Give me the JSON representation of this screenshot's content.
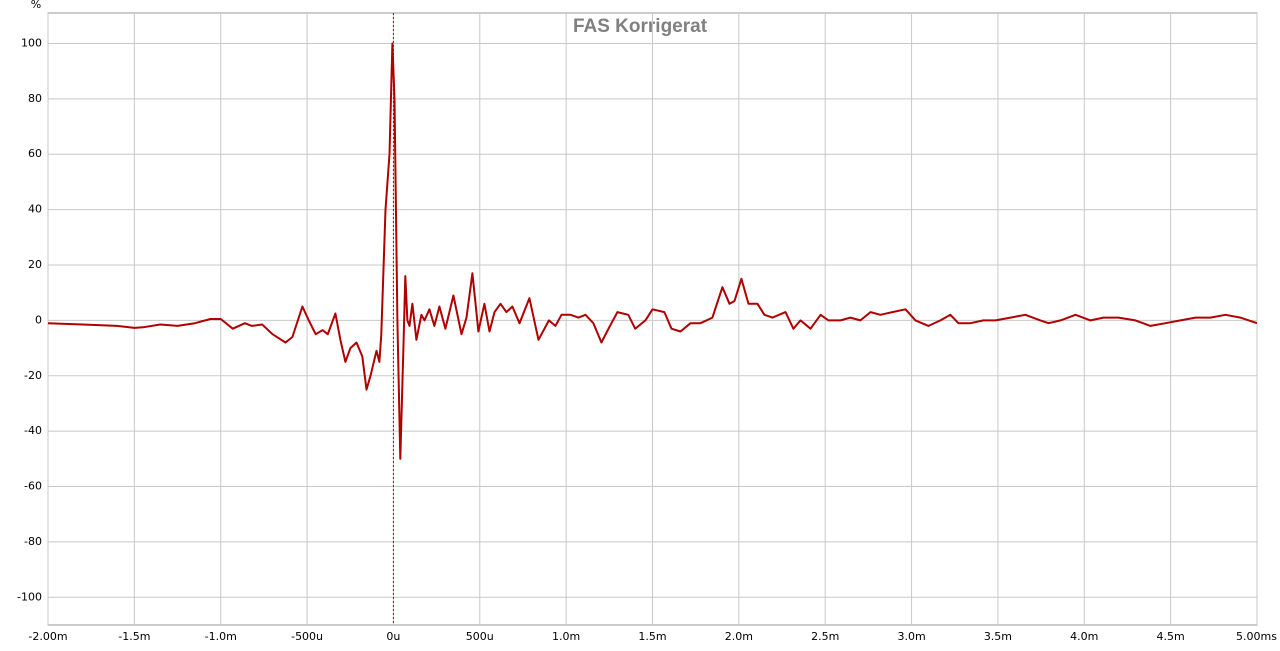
{
  "chart_data": {
    "type": "line",
    "title": "FAS Korrigerat",
    "y_unit": "%",
    "x": [
      -2.0,
      -1.8,
      -1.6,
      -1.5,
      -1.45,
      -1.35,
      -1.25,
      -1.15,
      -1.06,
      -1.0,
      -0.93,
      -0.86,
      -0.82,
      -0.76,
      -0.7,
      -0.625,
      -0.585,
      -0.527,
      -0.49,
      -0.45,
      -0.41,
      -0.38,
      -0.336,
      -0.307,
      -0.278,
      -0.249,
      -0.214,
      -0.18,
      -0.156,
      -0.133,
      -0.098,
      -0.081,
      -0.07,
      -0.046,
      -0.023,
      -0.006,
      0.006,
      0.023,
      0.04,
      0.058,
      0.069,
      0.081,
      0.093,
      0.11,
      0.133,
      0.162,
      0.18,
      0.208,
      0.237,
      0.266,
      0.301,
      0.347,
      0.394,
      0.423,
      0.457,
      0.492,
      0.527,
      0.556,
      0.585,
      0.62,
      0.654,
      0.689,
      0.73,
      0.787,
      0.84,
      0.9,
      0.938,
      0.973,
      1.025,
      1.071,
      1.112,
      1.158,
      1.204,
      1.245,
      1.297,
      1.36,
      1.4,
      1.459,
      1.5,
      1.569,
      1.61,
      1.662,
      1.72,
      1.778,
      1.847,
      1.905,
      1.946,
      1.975,
      2.015,
      2.056,
      2.108,
      2.148,
      2.195,
      2.27,
      2.316,
      2.357,
      2.415,
      2.473,
      2.519,
      2.588,
      2.646,
      2.704,
      2.762,
      2.82,
      2.889,
      2.965,
      3.023,
      3.098,
      3.167,
      3.225,
      3.271,
      3.341,
      3.416,
      3.486,
      3.573,
      3.659,
      3.746,
      3.793,
      3.862,
      3.949,
      4.036,
      4.111,
      4.198,
      4.296,
      4.383,
      4.47,
      4.557,
      4.644,
      4.731,
      4.817,
      4.904,
      5.0
    ],
    "series": [
      {
        "color": "#b00000",
        "values": [
          -1,
          -1.5,
          -2,
          -2.7,
          -2.5,
          -1.5,
          -2,
          -1,
          0.5,
          0.5,
          -3,
          -1,
          -2,
          -1.5,
          -5,
          -8,
          -6,
          5,
          0,
          -5,
          -3.5,
          -5,
          2.5,
          -7,
          -15,
          -10,
          -8,
          -13,
          -25,
          -20,
          -11,
          -15,
          -5,
          40,
          60,
          100,
          80,
          0,
          -50,
          -10,
          16,
          0,
          -2,
          6,
          -7,
          2,
          0,
          4,
          -2,
          5,
          -3,
          9,
          -5,
          1,
          17,
          -4,
          6,
          -4,
          3,
          6,
          3,
          5,
          -1,
          8,
          -7,
          0,
          -2,
          2,
          2,
          1,
          2,
          -1,
          -8,
          -3,
          3,
          2,
          -3,
          0,
          4,
          3,
          -3,
          -4,
          -1,
          -1,
          1,
          12,
          6,
          7,
          15,
          6,
          6,
          2,
          1,
          3,
          -3,
          0,
          -3,
          2,
          0,
          0,
          1,
          0,
          3,
          2,
          3,
          4,
          0,
          -2,
          0,
          2,
          -1,
          -1,
          0,
          0,
          1,
          2,
          0,
          -1,
          0,
          2,
          0,
          1,
          1,
          0,
          -2,
          -1,
          0,
          1,
          1,
          2,
          1,
          -1
        ]
      }
    ],
    "xlim": [
      -2.0,
      5.0
    ],
    "xticks": [
      {
        "value": -2.0,
        "label": "-2.00m"
      },
      {
        "value": -1.5,
        "label": "-1.5m"
      },
      {
        "value": -1.0,
        "label": "-1.0m"
      },
      {
        "value": -0.5,
        "label": "-500u"
      },
      {
        "value": 0,
        "label": "0u"
      },
      {
        "value": 0.5,
        "label": "500u"
      },
      {
        "value": 1.0,
        "label": "1.0m"
      },
      {
        "value": 1.5,
        "label": "1.5m"
      },
      {
        "value": 2.0,
        "label": "2.0m"
      },
      {
        "value": 2.5,
        "label": "2.5m"
      },
      {
        "value": 3.0,
        "label": "3.0m"
      },
      {
        "value": 3.5,
        "label": "3.5m"
      },
      {
        "value": 4.0,
        "label": "4.0m"
      },
      {
        "value": 4.5,
        "label": "4.5m"
      },
      {
        "value": 5.0,
        "label": "5.00ms"
      }
    ],
    "ylim": [
      -110,
      111
    ],
    "yticks": [
      -100,
      -80,
      -60,
      -40,
      -20,
      0,
      20,
      40,
      60,
      80,
      100
    ],
    "grid": true,
    "marker_x": 0,
    "marker_color": "#c00000"
  }
}
